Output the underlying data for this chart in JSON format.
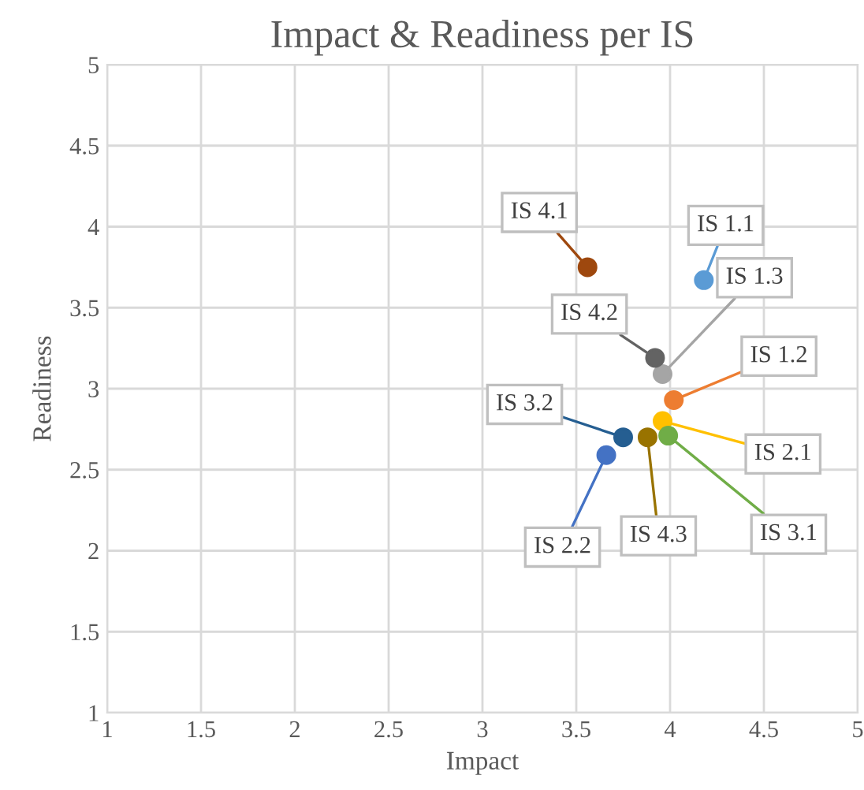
{
  "chart_data": {
    "type": "scatter",
    "title": "Impact & Readiness per IS",
    "xlabel": "Impact",
    "ylabel": "Readiness",
    "xlim": [
      1,
      5
    ],
    "ylim": [
      1,
      5
    ],
    "xticks": [
      1,
      1.5,
      2,
      2.5,
      3,
      3.5,
      4,
      4.5,
      5
    ],
    "yticks": [
      1,
      1.5,
      2,
      2.5,
      3,
      3.5,
      4,
      4.5,
      5
    ],
    "grid": true,
    "marker": "circle",
    "legend": false,
    "series": [
      {
        "name": "IS 1.1",
        "color": "#5b9bd5",
        "x": [
          4.18
        ],
        "values": [
          3.67
        ]
      },
      {
        "name": "IS 1.2",
        "color": "#ed7d31",
        "x": [
          4.02
        ],
        "values": [
          2.93
        ]
      },
      {
        "name": "IS 1.3",
        "color": "#a5a5a5",
        "x": [
          3.96
        ],
        "values": [
          3.09
        ]
      },
      {
        "name": "IS 2.1",
        "color": "#ffc000",
        "x": [
          3.96
        ],
        "values": [
          2.8
        ]
      },
      {
        "name": "IS 2.2",
        "color": "#4472c4",
        "x": [
          3.66
        ],
        "values": [
          2.59
        ]
      },
      {
        "name": "IS 3.1",
        "color": "#70ad47",
        "x": [
          3.99
        ],
        "values": [
          2.71
        ]
      },
      {
        "name": "IS 3.2",
        "color": "#255e91",
        "x": [
          3.75
        ],
        "values": [
          2.7
        ]
      },
      {
        "name": "IS 4.1",
        "color": "#9e480e",
        "x": [
          3.56
        ],
        "values": [
          3.75
        ]
      },
      {
        "name": "IS 4.2",
        "color": "#636363",
        "x": [
          3.92
        ],
        "values": [
          3.19
        ]
      },
      {
        "name": "IS 4.3",
        "color": "#997300",
        "x": [
          3.88
        ],
        "values": [
          2.7
        ]
      }
    ]
  }
}
